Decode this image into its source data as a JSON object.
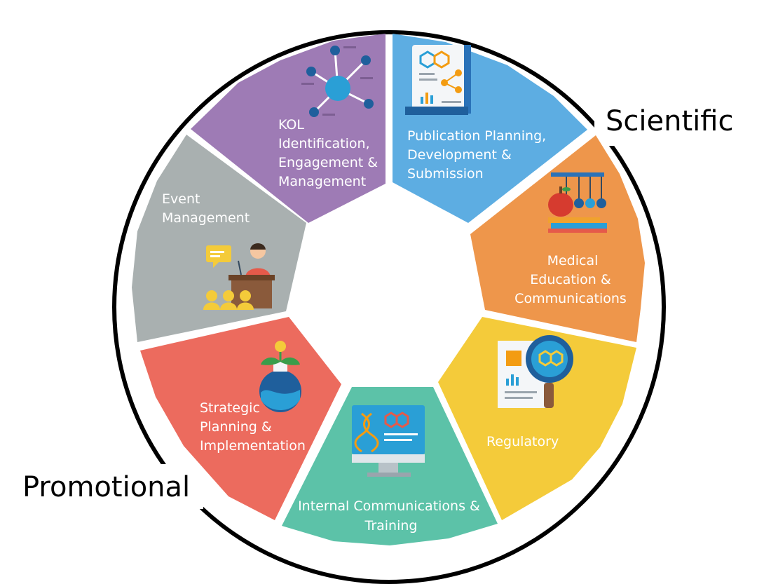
{
  "outer_labels": {
    "scientific": "Scientific",
    "promotional": "Promotional"
  },
  "segments": [
    {
      "id": "publication",
      "lines": [
        "Publication Planning,",
        "Development &",
        "Submission"
      ],
      "color": "#5DADE2",
      "icon": "document-network-icon"
    },
    {
      "id": "medical-education",
      "lines": [
        "Medical",
        "Education &",
        "Communications"
      ],
      "color": "#EE964B",
      "icon": "apple-pendulum-icon"
    },
    {
      "id": "regulatory",
      "lines": [
        "Regulatory"
      ],
      "color": "#F4CB3A",
      "icon": "document-magnifier-icon"
    },
    {
      "id": "internal-comms",
      "lines": [
        "Internal Communications &",
        "Training"
      ],
      "color": "#5CC2A8",
      "icon": "monitor-dna-icon"
    },
    {
      "id": "strategic-planning",
      "lines": [
        "Strategic",
        "Planning &",
        "Implementation"
      ],
      "color": "#EC6B5E",
      "icon": "plant-globe-icon"
    },
    {
      "id": "event-management",
      "lines": [
        "Event",
        "Management"
      ],
      "color": "#A9B0B0",
      "icon": "presenter-audience-icon"
    },
    {
      "id": "kol",
      "lines": [
        "KOL",
        "Identification,",
        "Engagement &",
        "Management"
      ],
      "color": "#9E7BB5",
      "icon": "network-hub-icon"
    }
  ]
}
